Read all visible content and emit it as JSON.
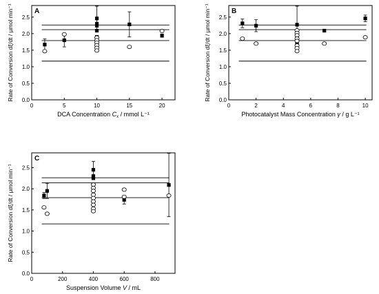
{
  "chart_data": [
    {
      "panel_label": "A",
      "type": "scatter",
      "xlabel_pre": "DCA Concentration ",
      "xlabel_var": "C",
      "xlabel_sub": "x",
      "xlabel_post": " / mmol L⁻¹",
      "ylabel": "Rate of Conversion dξ/dt / µmol min⁻¹",
      "xlim": [
        0,
        22
      ],
      "ylim": [
        0.0,
        2.85
      ],
      "xticks": [
        0,
        5,
        10,
        15,
        20
      ],
      "yticks": [
        0.0,
        0.5,
        1.0,
        1.5,
        2.0,
        2.5
      ],
      "ref_lines": [
        2.26,
        2.12,
        1.79,
        1.17
      ],
      "series": [
        {
          "marker": "filled-square",
          "points": [
            {
              "x": 2,
              "y": 1.67,
              "err": 0.17
            },
            {
              "x": 5,
              "y": 1.8,
              "err": 0.2
            },
            {
              "x": 10,
              "y": 2.46,
              "err": 0.37
            },
            {
              "x": 10,
              "y": 2.3,
              "err": 0
            },
            {
              "x": 10,
              "y": 2.24,
              "err": 0
            },
            {
              "x": 10,
              "y": 2.09,
              "err": 0
            },
            {
              "x": 10,
              "y": 1.9,
              "err": 0
            },
            {
              "x": 10,
              "y": 1.65,
              "err": 0
            },
            {
              "x": 15,
              "y": 2.28,
              "err": 0.38
            },
            {
              "x": 20,
              "y": 1.94,
              "err": 0.05
            }
          ]
        },
        {
          "marker": "open-circle",
          "points": [
            {
              "x": 2,
              "y": 1.47
            },
            {
              "x": 5,
              "y": 1.98
            },
            {
              "x": 10,
              "y": 1.88
            },
            {
              "x": 10,
              "y": 1.8
            },
            {
              "x": 10,
              "y": 1.73
            },
            {
              "x": 10,
              "y": 1.65
            },
            {
              "x": 10,
              "y": 1.57
            },
            {
              "x": 10,
              "y": 1.49
            },
            {
              "x": 15,
              "y": 1.6
            },
            {
              "x": 20,
              "y": 2.08
            }
          ]
        }
      ]
    },
    {
      "panel_label": "B",
      "type": "scatter",
      "xlabel_pre": "Photocatalyst Mass Concentration ",
      "xlabel_var": "γ",
      "xlabel_sub": "",
      "xlabel_post": " / g L⁻¹",
      "ylabel": "Rate of Conversion dξ/dt / µmol min⁻¹",
      "xlim": [
        0,
        10.5
      ],
      "ylim": [
        0.0,
        2.85
      ],
      "xticks": [
        0,
        2,
        4,
        6,
        8,
        10
      ],
      "yticks": [
        0.0,
        0.5,
        1.0,
        1.5,
        2.0,
        2.5
      ],
      "ref_lines": [
        2.26,
        2.12,
        1.79,
        1.17
      ],
      "series": [
        {
          "marker": "filled-square",
          "points": [
            {
              "x": 1,
              "y": 2.31,
              "err": 0.13
            },
            {
              "x": 2,
              "y": 2.24,
              "err": 0.18
            },
            {
              "x": 5,
              "y": 2.27,
              "err": 0.56
            },
            {
              "x": 5,
              "y": 1.9,
              "err": 0
            },
            {
              "x": 5,
              "y": 1.71,
              "err": 0
            },
            {
              "x": 7,
              "y": 2.09,
              "err": 0
            },
            {
              "x": 10,
              "y": 2.46,
              "err": 0.1
            }
          ]
        },
        {
          "marker": "open-circle",
          "points": [
            {
              "x": 1,
              "y": 1.85
            },
            {
              "x": 2,
              "y": 1.7
            },
            {
              "x": 5,
              "y": 2.1
            },
            {
              "x": 5,
              "y": 2.02
            },
            {
              "x": 5,
              "y": 1.95
            },
            {
              "x": 5,
              "y": 1.85
            },
            {
              "x": 5,
              "y": 1.78
            },
            {
              "x": 5,
              "y": 1.64
            },
            {
              "x": 5,
              "y": 1.56
            },
            {
              "x": 5,
              "y": 1.47
            },
            {
              "x": 7,
              "y": 1.7
            },
            {
              "x": 10,
              "y": 1.89
            }
          ]
        }
      ]
    },
    {
      "panel_label": "C",
      "type": "scatter",
      "xlabel_pre": "Suspension Volume ",
      "xlabel_var": "V",
      "xlabel_sub": "",
      "xlabel_post": " / mL",
      "ylabel": "Rate of Conversion dξ/dt / µmol min⁻¹",
      "xlim": [
        0,
        930
      ],
      "ylim": [
        0.0,
        2.85
      ],
      "xticks": [
        0,
        200,
        400,
        600,
        800
      ],
      "yticks": [
        0.0,
        0.5,
        1.0,
        1.5,
        2.0,
        2.5
      ],
      "ref_lines": [
        2.26,
        2.14,
        1.79,
        1.17
      ],
      "series": [
        {
          "marker": "filled-square",
          "points": [
            {
              "x": 80,
              "y": 1.84,
              "err": 0.07
            },
            {
              "x": 100,
              "y": 1.95,
              "err": 0.18
            },
            {
              "x": 400,
              "y": 2.45,
              "err": 0.2
            },
            {
              "x": 400,
              "y": 2.3,
              "err": 0
            },
            {
              "x": 400,
              "y": 2.25,
              "err": 0
            },
            {
              "x": 600,
              "y": 1.74,
              "err": 0.1
            },
            {
              "x": 890,
              "y": 2.09,
              "err": 0.75
            }
          ]
        },
        {
          "marker": "open-circle",
          "points": [
            {
              "x": 80,
              "y": 1.56
            },
            {
              "x": 100,
              "y": 1.41
            },
            {
              "x": 400,
              "y": 2.1
            },
            {
              "x": 400,
              "y": 2.02
            },
            {
              "x": 400,
              "y": 1.95
            },
            {
              "x": 400,
              "y": 1.86
            },
            {
              "x": 400,
              "y": 1.78
            },
            {
              "x": 400,
              "y": 1.7
            },
            {
              "x": 400,
              "y": 1.62
            },
            {
              "x": 400,
              "y": 1.53
            },
            {
              "x": 400,
              "y": 1.47
            },
            {
              "x": 600,
              "y": 1.98
            },
            {
              "x": 600,
              "y": 1.81
            },
            {
              "x": 890,
              "y": 1.84
            }
          ]
        }
      ]
    }
  ]
}
